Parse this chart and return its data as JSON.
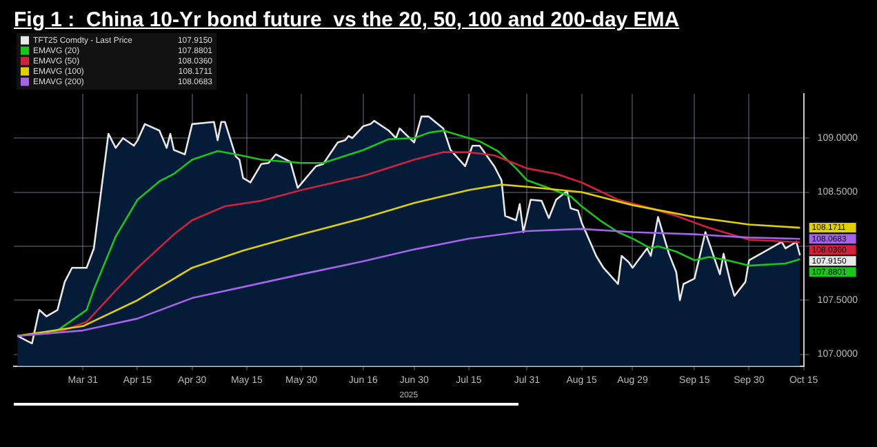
{
  "chart_data": {
    "type": "line",
    "title": "Fig 1 :  China 10-Yr bond future  vs the 20, 50, 100 and 200-day EMA",
    "xlabel": "2025",
    "xlim": [
      "2025-03-12",
      "2025-10-15"
    ],
    "xticks": [
      {
        "value": "2025-03-31",
        "label": "Mar 31"
      },
      {
        "value": "2025-04-15",
        "label": "Apr 15"
      },
      {
        "value": "2025-04-30",
        "label": "Apr 30"
      },
      {
        "value": "2025-05-15",
        "label": "May 15"
      },
      {
        "value": "2025-05-30",
        "label": "May 30"
      },
      {
        "value": "2025-06-16",
        "label": "Jun 16"
      },
      {
        "value": "2025-06-30",
        "label": "Jun 30"
      },
      {
        "value": "2025-07-15",
        "label": "Jul 15"
      },
      {
        "value": "2025-07-31",
        "label": "Jul 31"
      },
      {
        "value": "2025-08-15",
        "label": "Aug 15"
      },
      {
        "value": "2025-08-29",
        "label": "Aug 29"
      },
      {
        "value": "2025-09-15",
        "label": "Sep 15"
      },
      {
        "value": "2025-09-30",
        "label": "Sep 30"
      },
      {
        "value": "2025-10-15",
        "label": "Oct 15"
      }
    ],
    "ylim": [
      106.89,
      109.41
    ],
    "yticks": [
      {
        "value": 107,
        "label": "107.0000"
      },
      {
        "value": 107.5,
        "label": "107.5000"
      },
      {
        "value": 108,
        "label": null
      },
      {
        "value": 108.5,
        "label": "108.5000"
      },
      {
        "value": 109,
        "label": "109.0000"
      }
    ],
    "grid": true,
    "legend": "top left",
    "marker": "none",
    "line_style": "solid",
    "series": [
      {
        "name": "TFT25 Comdty - Last Price",
        "type": "area",
        "color": "#e8e8e8",
        "value_labels": [
          null,
          null,
          null,
          null,
          null,
          null,
          null,
          null,
          null,
          null,
          null,
          null,
          null,
          null,
          null,
          null,
          null,
          null,
          null,
          null,
          null,
          null,
          null,
          null,
          null,
          null,
          null,
          null,
          null,
          null,
          null,
          null,
          null,
          null,
          null,
          null,
          null,
          null,
          null,
          null,
          null,
          null,
          null,
          null,
          null,
          null,
          null,
          null,
          null,
          null,
          null,
          null,
          null,
          null,
          null,
          null,
          null,
          null,
          null,
          null,
          null,
          null,
          null,
          null,
          null,
          null,
          null,
          null,
          null,
          null,
          null,
          null,
          null,
          null,
          null,
          null,
          null,
          null,
          null,
          null,
          null,
          null,
          null,
          null,
          null,
          null,
          null,
          null,
          null,
          null,
          null,
          null,
          "107.9150"
        ],
        "x": [
          "2025-03-13",
          "2025-03-17",
          "2025-03-19",
          "2025-03-21",
          "2025-03-24",
          "2025-03-26",
          "2025-03-28",
          "2025-04-01",
          "2025-04-03",
          "2025-04-07",
          "2025-04-09",
          "2025-04-11",
          "2025-04-14",
          "2025-04-15",
          "2025-04-17",
          "2025-04-21",
          "2025-04-23",
          "2025-04-24",
          "2025-04-25",
          "2025-04-28",
          "2025-04-30",
          "2025-05-06",
          "2025-05-07",
          "2025-05-08",
          "2025-05-09",
          "2025-05-12",
          "2025-05-13",
          "2025-05-14",
          "2025-05-16",
          "2025-05-19",
          "2025-05-21",
          "2025-05-23",
          "2025-05-27",
          "2025-05-29",
          "2025-06-03",
          "2025-06-05",
          "2025-06-09",
          "2025-06-11",
          "2025-06-12",
          "2025-06-13",
          "2025-06-16",
          "2025-06-18",
          "2025-06-19",
          "2025-06-23",
          "2025-06-25",
          "2025-06-26",
          "2025-06-30",
          "2025-07-02",
          "2025-07-04",
          "2025-07-08",
          "2025-07-10",
          "2025-07-14",
          "2025-07-16",
          "2025-07-18",
          "2025-07-22",
          "2025-07-24",
          "2025-07-25",
          "2025-07-28",
          "2025-07-29",
          "2025-07-30",
          "2025-08-01",
          "2025-08-04",
          "2025-08-06",
          "2025-08-08",
          "2025-08-11",
          "2025-08-12",
          "2025-08-14",
          "2025-08-15",
          "2025-08-19",
          "2025-08-21",
          "2025-08-25",
          "2025-08-26",
          "2025-08-28",
          "2025-08-29",
          "2025-09-02",
          "2025-09-03",
          "2025-09-05",
          "2025-09-08",
          "2025-09-10",
          "2025-09-11",
          "2025-09-12",
          "2025-09-15",
          "2025-09-18",
          "2025-09-22",
          "2025-09-23",
          "2025-09-25",
          "2025-09-26",
          "2025-09-29",
          "2025-09-30",
          "2025-10-09",
          "2025-10-10",
          "2025-10-13",
          "2025-10-14"
        ],
        "values": [
          107.17,
          107.1,
          107.41,
          107.35,
          107.41,
          107.67,
          107.8,
          107.8,
          107.98,
          109.04,
          108.91,
          109.0,
          108.93,
          108.98,
          109.13,
          109.07,
          108.91,
          109.04,
          108.89,
          108.85,
          109.13,
          109.15,
          108.98,
          109.15,
          109.15,
          108.83,
          108.8,
          108.63,
          108.59,
          108.76,
          108.77,
          108.85,
          108.78,
          108.54,
          108.74,
          108.76,
          108.96,
          108.98,
          109.02,
          109.0,
          109.11,
          109.13,
          109.16,
          109.07,
          109.0,
          109.09,
          108.96,
          109.2,
          109.2,
          109.09,
          108.89,
          108.74,
          108.93,
          108.93,
          108.74,
          108.61,
          108.28,
          108.24,
          108.39,
          108.13,
          108.43,
          108.42,
          108.26,
          108.43,
          108.51,
          108.35,
          108.33,
          108.22,
          107.91,
          107.8,
          107.65,
          107.91,
          107.85,
          107.8,
          107.98,
          107.91,
          108.27,
          107.93,
          107.76,
          107.5,
          107.65,
          107.7,
          108.13,
          107.74,
          107.93,
          107.65,
          107.54,
          107.67,
          107.87,
          108.04,
          107.98,
          108.04,
          107.915
        ]
      },
      {
        "name": "EMAVG (20)",
        "color": "#19c619",
        "value_labels": [
          null,
          null,
          null,
          null,
          null,
          null,
          null,
          null,
          null,
          null,
          null,
          null,
          null,
          null,
          null,
          null,
          null,
          null,
          null,
          null,
          null,
          null,
          null,
          null,
          null,
          null,
          null,
          null,
          null,
          null,
          null,
          null,
          null,
          null,
          null,
          null,
          null,
          null,
          "107.8801"
        ],
        "x": [
          "2025-03-13",
          "2025-03-24",
          "2025-04-01",
          "2025-04-03",
          "2025-04-09",
          "2025-04-15",
          "2025-04-21",
          "2025-04-25",
          "2025-04-30",
          "2025-05-07",
          "2025-05-12",
          "2025-05-19",
          "2025-05-30",
          "2025-06-05",
          "2025-06-16",
          "2025-06-23",
          "2025-06-30",
          "2025-07-04",
          "2025-07-08",
          "2025-07-15",
          "2025-07-18",
          "2025-07-23",
          "2025-07-28",
          "2025-07-31",
          "2025-08-05",
          "2025-08-12",
          "2025-08-15",
          "2025-08-20",
          "2025-08-25",
          "2025-08-29",
          "2025-09-03",
          "2025-09-05",
          "2025-09-10",
          "2025-09-15",
          "2025-09-19",
          "2025-09-24",
          "2025-09-30",
          "2025-10-10",
          "2025-10-14"
        ],
        "values": [
          107.17,
          107.22,
          107.41,
          107.6,
          108.09,
          108.43,
          108.6,
          108.67,
          108.8,
          108.88,
          108.85,
          108.8,
          108.77,
          108.77,
          108.89,
          108.99,
          109.0,
          109.05,
          109.07,
          109.0,
          108.97,
          108.88,
          108.72,
          108.61,
          108.55,
          108.46,
          108.37,
          108.24,
          108.13,
          108.07,
          107.98,
          108.0,
          107.95,
          107.87,
          107.9,
          107.87,
          107.82,
          107.84,
          107.8801
        ]
      },
      {
        "name": "EMAVG (50)",
        "color": "#d0213d",
        "value_labels": [
          null,
          null,
          null,
          null,
          null,
          null,
          null,
          null,
          null,
          null,
          null,
          null,
          null,
          null,
          null,
          null,
          null,
          null,
          null,
          null,
          null,
          null,
          null,
          "108.0360"
        ],
        "x": [
          "2025-03-13",
          "2025-03-24",
          "2025-04-01",
          "2025-04-09",
          "2025-04-15",
          "2025-04-25",
          "2025-04-30",
          "2025-05-09",
          "2025-05-19",
          "2025-05-30",
          "2025-06-16",
          "2025-06-30",
          "2025-07-08",
          "2025-07-15",
          "2025-07-22",
          "2025-07-31",
          "2025-08-08",
          "2025-08-15",
          "2025-08-25",
          "2025-09-02",
          "2025-09-10",
          "2025-09-19",
          "2025-09-30",
          "2025-10-14"
        ],
        "values": [
          107.17,
          107.2,
          107.3,
          107.59,
          107.8,
          108.11,
          108.24,
          108.37,
          108.42,
          108.52,
          108.65,
          108.8,
          108.87,
          108.87,
          108.84,
          108.72,
          108.67,
          108.59,
          108.43,
          108.36,
          108.28,
          108.17,
          108.06,
          108.036
        ]
      },
      {
        "name": "EMAVG (100)",
        "color": "#e0d000",
        "value_labels": [
          null,
          null,
          null,
          null,
          null,
          null,
          null,
          null,
          null,
          null,
          null,
          null,
          null,
          null,
          null,
          "108.1711"
        ],
        "x": [
          "2025-03-13",
          "2025-03-31",
          "2025-04-15",
          "2025-04-30",
          "2025-05-14",
          "2025-05-30",
          "2025-06-16",
          "2025-06-30",
          "2025-07-15",
          "2025-07-24",
          "2025-07-31",
          "2025-08-15",
          "2025-08-29",
          "2025-09-15",
          "2025-09-30",
          "2025-10-14"
        ],
        "values": [
          107.17,
          107.26,
          107.5,
          107.8,
          107.96,
          108.11,
          108.26,
          108.4,
          108.52,
          108.57,
          108.55,
          108.5,
          108.38,
          108.27,
          108.2,
          108.1711
        ]
      },
      {
        "name": "EMAVG (200)",
        "color": "#a463e8",
        "value_labels": [
          null,
          null,
          null,
          null,
          null,
          null,
          null,
          null,
          null,
          null,
          null,
          null,
          null,
          null,
          "108.0683"
        ],
        "x": [
          "2025-03-13",
          "2025-03-31",
          "2025-04-15",
          "2025-04-30",
          "2025-05-15",
          "2025-05-30",
          "2025-06-16",
          "2025-06-30",
          "2025-07-15",
          "2025-07-31",
          "2025-08-15",
          "2025-08-29",
          "2025-09-15",
          "2025-09-30",
          "2025-10-14"
        ],
        "values": [
          107.17,
          107.22,
          107.33,
          107.52,
          107.63,
          107.74,
          107.86,
          107.97,
          108.07,
          108.14,
          108.16,
          108.13,
          108.11,
          108.08,
          108.0683
        ]
      }
    ]
  }
}
